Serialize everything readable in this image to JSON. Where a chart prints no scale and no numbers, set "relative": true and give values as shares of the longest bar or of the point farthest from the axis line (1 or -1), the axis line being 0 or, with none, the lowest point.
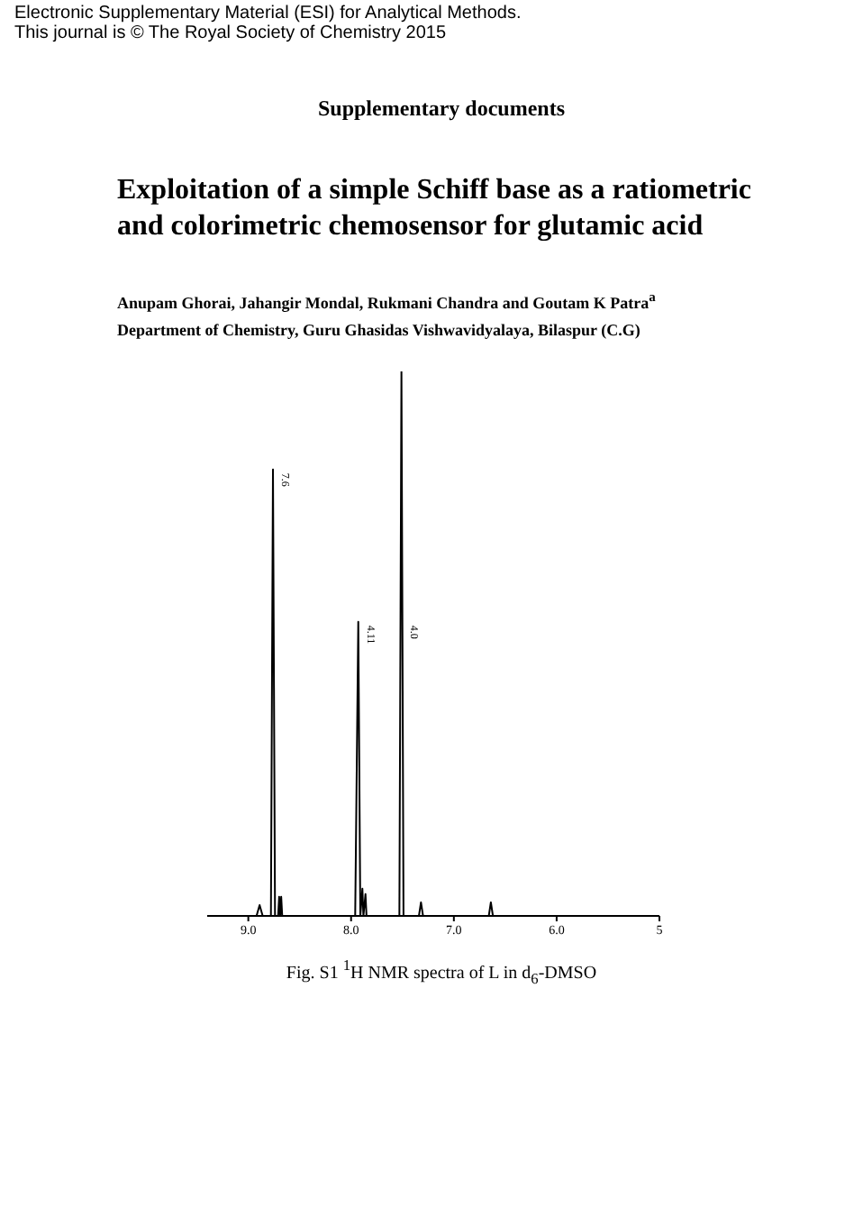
{
  "chart_data": {
    "type": "line",
    "relative": true,
    "title": "Exploitation of a simple Schiff base as a ratiometric and colorimetric chemosensor for glutamic acid",
    "x": [
      9.4,
      8.92,
      8.89,
      8.86,
      8.78,
      8.76,
      8.74,
      8.71,
      8.7,
      8.69,
      8.68,
      8.67,
      7.96,
      7.93,
      7.91,
      7.89,
      7.88,
      7.86,
      7.85,
      7.53,
      7.51,
      7.49,
      7.34,
      7.32,
      7.3,
      6.66,
      6.64,
      6.62,
      5.0
    ],
    "series": [
      {
        "color": "#000000",
        "values": [
          0,
          0,
          0.02,
          0,
          0,
          0.82,
          0,
          0,
          0.035,
          0,
          0.035,
          0,
          0,
          0.54,
          0,
          0.05,
          0,
          0.04,
          0,
          0,
          1,
          0,
          0,
          0.025,
          0,
          0,
          0.025,
          0,
          0
        ]
      }
    ],
    "xlim": [
      9.4,
      5.0
    ],
    "xticks": [
      {
        "value": 9,
        "label": "9.0"
      },
      {
        "value": 8,
        "label": "8.0"
      },
      {
        "value": 7,
        "label": "7.0"
      },
      {
        "value": 6,
        "label": "6.0"
      },
      5
    ],
    "tick_labels": "x",
    "marker": "none",
    "line_style": "solid",
    "annotations": [
      "Electronic Supplementary Material (ESI) for Analytical Methods.",
      "This journal is © The Royal Society of Chemistry 2015",
      "Supplementary documents",
      "Anupam Ghorai, Jahangir Mondal, Rukmani Chandra and Goutam K Patra$^{a}$",
      "Department of Chemistry, Guru Ghasidas Vishwavidyalaya, Bilaspur (C.G)",
      "Fig. S1 $^{1}$H NMR spectra of L in d$_{6}$-DMSO",
      {
        "text": "7.6",
        "x": 8.76,
        "y": 0.82
      },
      {
        "text": "4.11",
        "x": 7.93,
        "y": 0.54
      },
      {
        "text": "4.0",
        "x": 7.51,
        "y": 0.54
      }
    ]
  }
}
